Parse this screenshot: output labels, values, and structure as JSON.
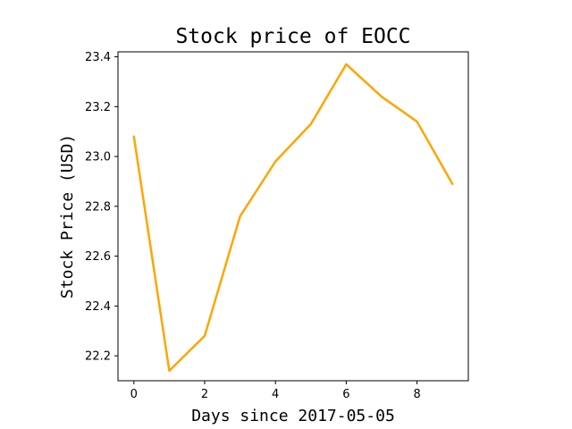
{
  "chart_data": {
    "type": "line",
    "title": "Stock price of EOCC",
    "xlabel": "Days since 2017-05-05",
    "ylabel": "Stock Price (USD)",
    "x": [
      0,
      1,
      2,
      3,
      4,
      5,
      6,
      7,
      8,
      9
    ],
    "series": [
      {
        "values": [
          23.08,
          22.14,
          22.28,
          22.76,
          22.98,
          23.13,
          23.37,
          23.24,
          23.14,
          22.89
        ],
        "color": "#FFA500"
      }
    ],
    "xlim": [
      -0.45,
      9.45
    ],
    "ylim": [
      22.1,
      23.42
    ],
    "xticks": [
      0,
      2,
      4,
      6,
      8
    ],
    "xtick_labels": [
      "0",
      "2",
      "4",
      "6",
      "8"
    ],
    "yticks": [
      22.2,
      22.4,
      22.6,
      22.8,
      23.0,
      23.2,
      23.4
    ],
    "ytick_labels": [
      "22.2",
      "22.4",
      "22.6",
      "22.8",
      "23.0",
      "23.2",
      "23.4"
    ],
    "grid": false
  }
}
